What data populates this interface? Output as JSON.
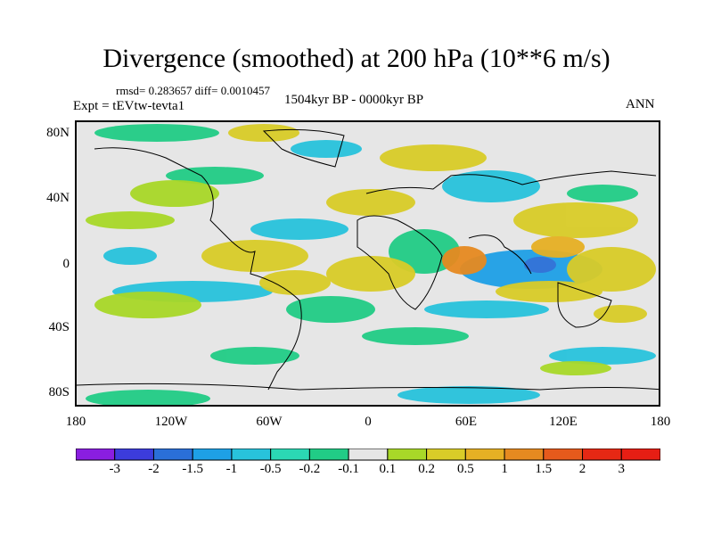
{
  "title": "Divergence (smoothed) at 200 hPa (10**6 m/s)",
  "stats": "rmsd= 0.283657 diff= 0.0010457",
  "experiment": "Expt = tEVtw-tevta1",
  "period": "1504kyr BP - 0000kyr BP",
  "season": "ANN",
  "y_axis_labels": [
    "80N",
    "40N",
    "0",
    "40S",
    "80S"
  ],
  "x_axis_labels": [
    "180",
    "120W",
    "60W",
    "0",
    "60E",
    "120E",
    "180"
  ],
  "colorbar": {
    "labels": [
      "-3",
      "-2",
      "-1.5",
      "-1",
      "-0.5",
      "-0.2",
      "-0.1",
      "0.1",
      "0.2",
      "0.5",
      "1",
      "1.5",
      "2",
      "3"
    ],
    "colors": [
      "#8a1ee0",
      "#3c3cdc",
      "#2a6fd8",
      "#1ea0e6",
      "#28c3dc",
      "#2bd8b4",
      "#21cc86",
      "#e6e6e6",
      "#a8d828",
      "#d9cc28",
      "#e6b024",
      "#e68a20",
      "#e65a1c",
      "#e62814",
      "#e61e14"
    ]
  },
  "map_data": {
    "variable": "Divergence (smoothed) at 200 hPa",
    "units": "10**6 m/s",
    "lon_range": [
      -180,
      180
    ],
    "lat_range": [
      -90,
      90
    ]
  }
}
